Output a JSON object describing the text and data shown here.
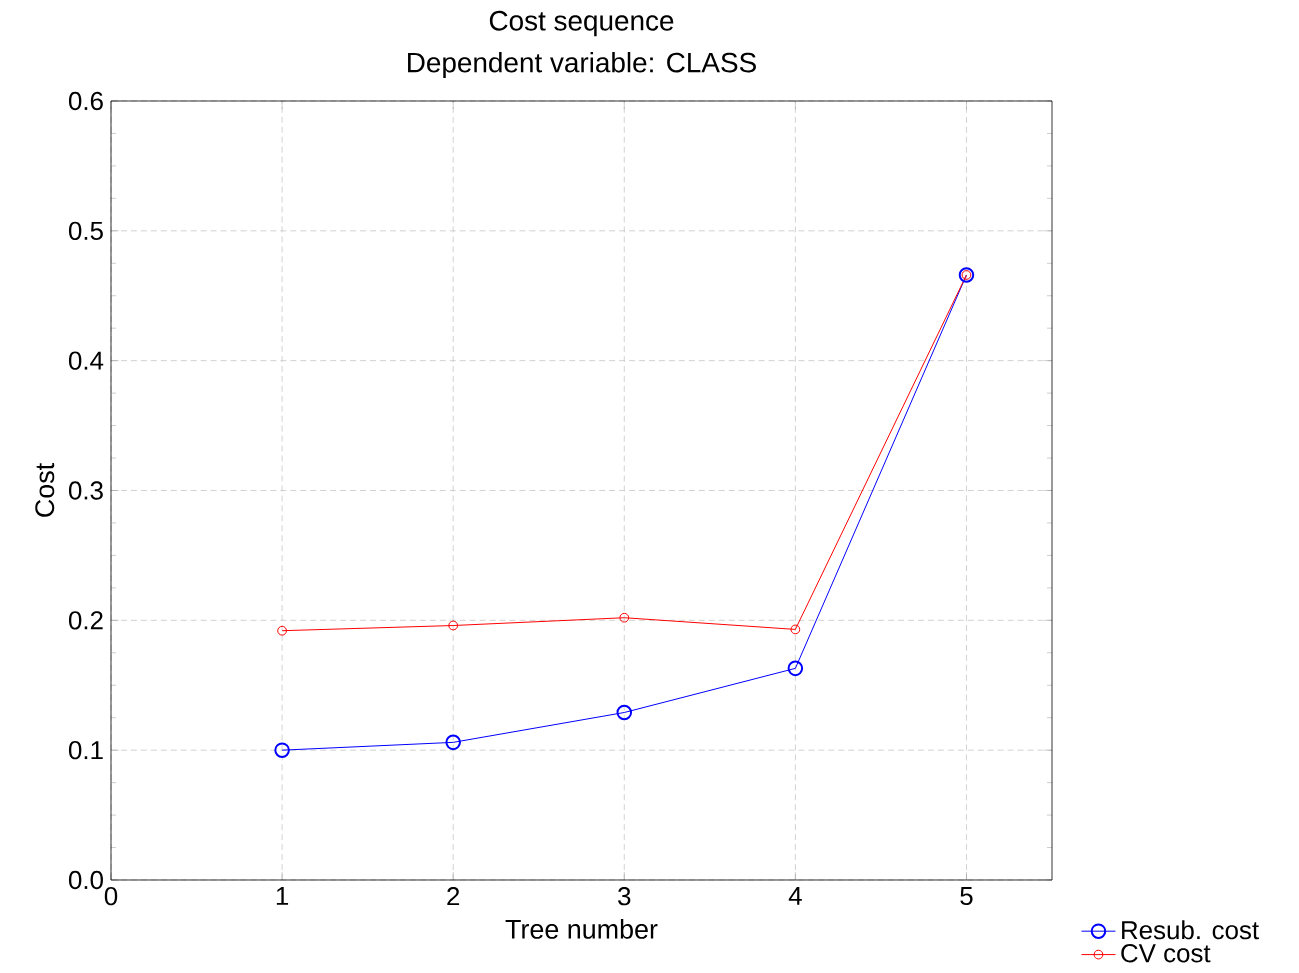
{
  "chart_data": {
    "type": "line",
    "title": "Cost sequence",
    "subtitle": "Dependent variable: CLASS",
    "xlabel": "Tree number",
    "ylabel": "Cost",
    "x": [
      1,
      2,
      3,
      4,
      5
    ],
    "series": [
      {
        "name": "Resub. cost",
        "color": "#0000ff",
        "values": [
          0.1,
          0.106,
          0.129,
          0.163,
          0.466
        ]
      },
      {
        "name": "CV cost",
        "color": "#ff0000",
        "values": [
          0.192,
          0.196,
          0.202,
          0.193,
          0.466
        ]
      }
    ],
    "xlim": [
      0,
      5.5
    ],
    "xticks": [
      0,
      1,
      2,
      3,
      4,
      5
    ],
    "ylim": [
      0,
      0.6
    ],
    "yticks": [
      {
        "value": 0,
        "label": "0.0"
      },
      0.1,
      0.2,
      0.3,
      0.4,
      0.5,
      0.6
    ],
    "grid": true,
    "legend": "bottom right",
    "marker": "circle",
    "line_style": "solid"
  }
}
